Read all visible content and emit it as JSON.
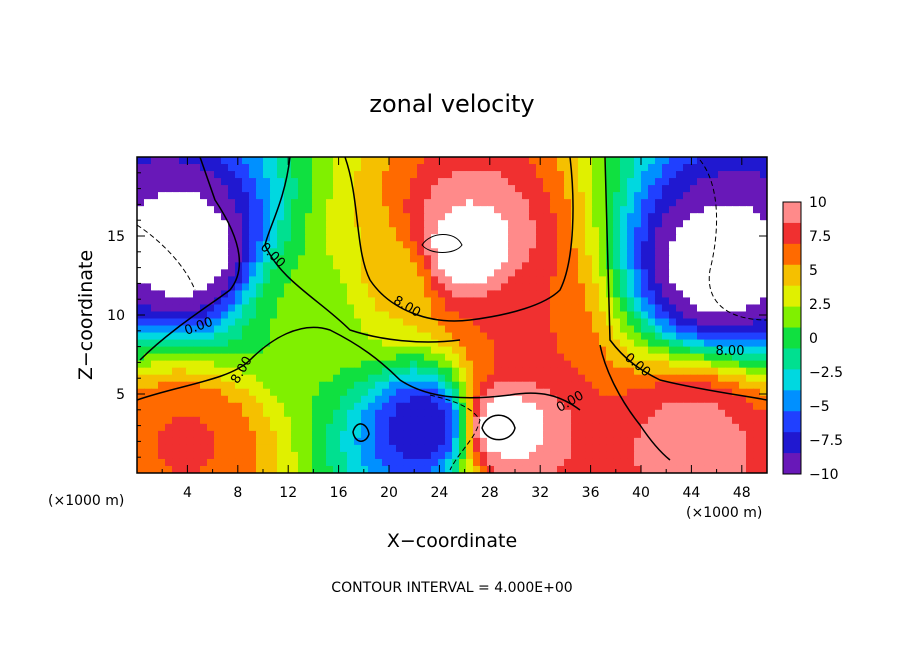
{
  "chart_data": {
    "type": "heatmap",
    "title": "zonal velocity",
    "xlabel": "X−coordinate",
    "ylabel": "Z−coordinate",
    "x_unit": "(×1000 m)",
    "xlim": [
      0,
      50
    ],
    "ylim": [
      0,
      20
    ],
    "x_ticks": [
      "4",
      "8",
      "12",
      "16",
      "20",
      "24",
      "28",
      "32",
      "36",
      "40",
      "44",
      "48"
    ],
    "y_ticks": [
      "5",
      "10",
      "15"
    ],
    "colorbar": {
      "range": [
        -10,
        10
      ],
      "labels": [
        "10",
        "7.5",
        "5",
        "2.5",
        "0",
        "−2.5",
        "−5",
        "−7.5",
        "−10"
      ],
      "colors_high_to_low": [
        "#ff8a8a",
        "#f03030",
        "#ff6a00",
        "#f5c000",
        "#e0f000",
        "#80f000",
        "#10e040",
        "#00e090",
        "#00d8e0",
        "#0090ff",
        "#2040ff",
        "#2018d0",
        "#6818b8"
      ]
    },
    "contour_labels": [
      "0.00",
      "8.00",
      "0.00",
      "8.00",
      "0.00",
      "0.00",
      "8.00"
    ],
    "contour_interval_text": "CONTOUR INTERVAL = 4.000E+00",
    "features": [
      {
        "x": 26,
        "y": 14,
        "value": 11
      },
      {
        "x": 30,
        "y": 9,
        "value": 7
      },
      {
        "x": 20,
        "y": 12,
        "value": 4
      },
      {
        "x": 14,
        "y": 10,
        "value": 1
      },
      {
        "x": 4,
        "y": 14,
        "value": -11
      },
      {
        "x": 46,
        "y": 13,
        "value": -11
      },
      {
        "x": 23,
        "y": 3,
        "value": -8
      },
      {
        "x": 29,
        "y": 3,
        "value": 11
      },
      {
        "x": 44,
        "y": 2,
        "value": 9
      },
      {
        "x": 4,
        "y": 2,
        "value": 7
      }
    ]
  }
}
